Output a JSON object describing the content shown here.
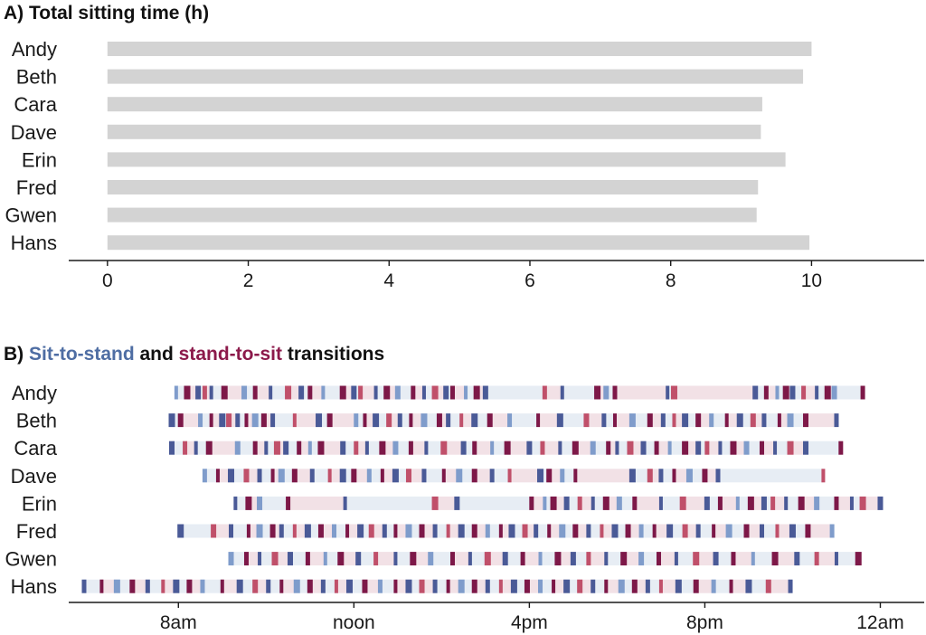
{
  "colors": {
    "sit_to_stand": "#4a5a97",
    "sit_to_stand_light": "#7f9ccb",
    "stand_to_sit": "#7d1848",
    "stand_to_sit_light": "#c0506a",
    "sit_background": "#f2e1e6",
    "stand_background": "#e7edf4",
    "bar": "#d3d3d3",
    "axis": "#1a1a1a"
  },
  "chart_data": [
    {
      "type": "bar",
      "orientation": "horizontal",
      "title_parts": [
        {
          "text": "A) Total sitting time (h)",
          "color": "#111111"
        }
      ],
      "categories": [
        "Andy",
        "Beth",
        "Cara",
        "Dave",
        "Erin",
        "Fred",
        "Gwen",
        "Hans"
      ],
      "values": [
        10.0,
        9.88,
        9.3,
        9.28,
        9.63,
        9.24,
        9.22,
        9.97
      ],
      "xlim": [
        -0.55,
        11.6
      ],
      "xticks": [
        0,
        2,
        4,
        6,
        8,
        10
      ],
      "xtick_labels": [
        "0",
        "2",
        "4",
        "6",
        "8",
        "10"
      ],
      "grid": false
    },
    {
      "type": "timeline",
      "title_parts": [
        {
          "text": "B) ",
          "color": "#111111"
        },
        {
          "text": "Sit-to-stand",
          "color": "#4e6da3"
        },
        {
          "text": " and ",
          "color": "#111111"
        },
        {
          "text": "stand-to-sit",
          "color": "#8c1a4b"
        },
        {
          "text": " transitions",
          "color": "#111111"
        }
      ],
      "x_unit": "hours since midnight",
      "xlim": [
        5.5,
        25.0
      ],
      "xticks": [
        8,
        12,
        16,
        20,
        24
      ],
      "xtick_labels": [
        "8am",
        "noon",
        "4pm",
        "8pm",
        "12am"
      ],
      "series": [
        {
          "name": "Andy",
          "start": 7.95,
          "end": 23.6,
          "events": [
            7.95,
            8.2,
            8.45,
            8.6,
            8.75,
            9.05,
            9.5,
            9.75,
            10.1,
            10.5,
            10.8,
            11.0,
            11.3,
            11.75,
            12.0,
            12.15,
            12.5,
            12.75,
            13.0,
            13.35,
            13.6,
            13.85,
            14.1,
            14.25,
            14.55,
            14.8,
            15.0,
            16.35,
            16.75,
            17.55,
            17.75,
            17.95,
            19.15,
            19.3,
            21.15,
            21.4,
            21.65,
            21.85,
            22.0,
            22.25,
            22.55,
            22.8,
            22.95,
            23.6
          ]
        },
        {
          "name": "Beth",
          "start": 7.85,
          "end": 23.0,
          "events": [
            7.85,
            8.05,
            8.5,
            8.75,
            9.0,
            9.15,
            9.35,
            9.55,
            9.75,
            9.95,
            10.15,
            10.65,
            11.2,
            11.45,
            12.05,
            12.25,
            12.5,
            12.8,
            13.05,
            13.3,
            13.6,
            13.95,
            14.15,
            14.45,
            14.75,
            15.1,
            15.55,
            16.2,
            16.7,
            17.3,
            17.7,
            17.95,
            18.35,
            18.75,
            19.05,
            19.3,
            19.55,
            19.85,
            20.15,
            20.5,
            20.8,
            21.1,
            21.35,
            21.7,
            21.95,
            22.3,
            23.0
          ]
        },
        {
          "name": "Cara",
          "start": 7.85,
          "end": 23.1,
          "events": [
            7.85,
            8.15,
            8.4,
            8.7,
            9.35,
            9.75,
            10.0,
            10.25,
            10.45,
            10.75,
            11.0,
            11.25,
            11.75,
            12.05,
            12.3,
            12.65,
            12.95,
            13.3,
            13.65,
            14.05,
            14.5,
            14.75,
            15.15,
            15.5,
            16.0,
            16.3,
            16.7,
            17.05,
            17.45,
            17.8,
            18.0,
            18.3,
            18.6,
            18.9,
            19.2,
            19.55,
            19.85,
            20.05,
            20.35,
            20.65,
            20.95,
            21.3,
            21.6,
            21.95,
            22.3,
            23.1
          ]
        },
        {
          "name": "Dave",
          "start": 8.6,
          "end": 22.7,
          "events": [
            8.6,
            8.9,
            9.2,
            9.55,
            9.85,
            10.15,
            10.35,
            10.65,
            11.05,
            11.45,
            11.75,
            12.0,
            12.35,
            12.65,
            12.95,
            13.25,
            13.6,
            14.05,
            14.4,
            14.75,
            15.15,
            15.55,
            16.25,
            16.45,
            16.75,
            17.05,
            18.35,
            18.75,
            19.0,
            19.3,
            19.65,
            20.0,
            20.3,
            22.7
          ]
        },
        {
          "name": "Erin",
          "start": 9.3,
          "end": 24.0,
          "events": [
            9.3,
            9.6,
            9.85,
            10.5,
            11.8,
            13.85,
            14.35,
            16.05,
            16.35,
            16.55,
            16.85,
            17.15,
            17.45,
            17.75,
            18.05,
            18.4,
            19.0,
            19.5,
            20.05,
            20.35,
            20.75,
            21.05,
            21.35,
            21.55,
            21.85,
            22.2,
            22.55,
            23.0,
            23.35,
            23.6,
            24.0
          ]
        },
        {
          "name": "Fred",
          "start": 8.05,
          "end": 22.9,
          "events": [
            8.05,
            8.8,
            9.2,
            9.6,
            9.85,
            10.15,
            10.35,
            10.65,
            10.95,
            11.25,
            11.55,
            11.85,
            12.15,
            12.4,
            12.7,
            12.95,
            13.25,
            13.55,
            13.85,
            14.15,
            14.45,
            14.75,
            15.05,
            15.35,
            15.6,
            15.9,
            16.15,
            16.45,
            16.75,
            17.05,
            17.35,
            17.65,
            17.95,
            18.25,
            18.55,
            18.85,
            19.2,
            19.55,
            19.85,
            20.2,
            20.55,
            20.95,
            21.3,
            21.65,
            22.0,
            22.35,
            22.9
          ]
        },
        {
          "name": "Gwen",
          "start": 9.2,
          "end": 23.5,
          "events": [
            9.2,
            9.55,
            9.85,
            10.2,
            10.55,
            10.95,
            11.35,
            11.7,
            12.1,
            12.5,
            12.95,
            13.35,
            13.75,
            14.25,
            14.65,
            15.05,
            15.45,
            15.85,
            16.25,
            16.65,
            17.0,
            17.35,
            17.75,
            18.15,
            18.55,
            18.95,
            19.35,
            19.8,
            20.25,
            20.65,
            21.1,
            21.6,
            22.1,
            22.55,
            23.0,
            23.5
          ]
        },
        {
          "name": "Hans",
          "start": 5.85,
          "end": 21.95,
          "events": [
            5.85,
            6.25,
            6.6,
            6.95,
            7.3,
            7.65,
            7.95,
            8.25,
            8.55,
            9.0,
            9.4,
            9.75,
            10.05,
            10.35,
            10.7,
            11.0,
            11.3,
            11.6,
            11.9,
            12.25,
            12.6,
            12.95,
            13.25,
            13.55,
            13.85,
            14.15,
            14.45,
            14.75,
            15.05,
            15.35,
            15.65,
            15.95,
            16.25,
            16.55,
            16.85,
            17.15,
            17.45,
            17.75,
            18.1,
            18.4,
            18.7,
            19.0,
            19.4,
            19.8,
            20.2,
            20.6,
            21.0,
            21.45,
            21.95
          ]
        }
      ]
    }
  ]
}
